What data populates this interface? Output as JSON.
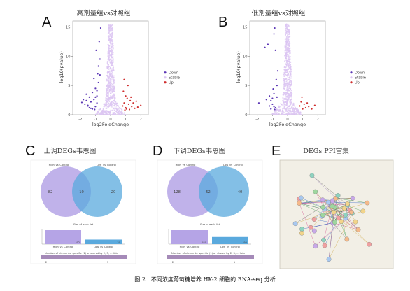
{
  "panels": {
    "A": {
      "letter": "A",
      "title": "高剂量组vs对照组"
    },
    "B": {
      "letter": "B",
      "title": "低剂量组vs对照组"
    },
    "C": {
      "letter": "C",
      "title": "上调DEGs韦恩图"
    },
    "D": {
      "letter": "D",
      "title": "下调DEGs韦恩图"
    },
    "E": {
      "letter": "E",
      "title": "DEGs PPI富集"
    }
  },
  "caption": "图 2　不同浓度葡萄糖培养 HK-2 细胞的 RNA-seq 分析",
  "chart_data": [
    {
      "type": "scatter",
      "panel": "A",
      "title": "高剂量组vs对照组",
      "xlabel": "log2FoldChange",
      "ylabel": "-log10(pvalue)",
      "xlim": [
        -2.5,
        2.5
      ],
      "ylim": [
        0,
        16
      ],
      "xticks": [
        -2,
        -1,
        0,
        1,
        2
      ],
      "yticks": [
        0,
        5,
        10,
        15
      ],
      "legend": [
        "Down",
        "Stable",
        "Up"
      ],
      "legend_position": "right",
      "colors": {
        "Down": "#5b36b5",
        "Stable": "#dcc6f2",
        "Up": "#cf2e2e"
      },
      "series": [
        {
          "name": "Down",
          "x": [
            -1.9,
            -1.7,
            -1.6,
            -1.5,
            -1.4,
            -1.3,
            -1.2,
            -1.1,
            -1.0,
            -0.9,
            -0.8,
            -1.4,
            -1.2,
            -1.0,
            -0.9,
            -0.85,
            -0.7,
            -1.6,
            -1.1,
            -0.95,
            -0.8,
            -1.3,
            -1.0,
            -0.75,
            -1.8,
            -1.5,
            -1.05,
            -0.9,
            -0.7,
            -0.65
          ],
          "y": [
            2.1,
            1.8,
            2.4,
            1.5,
            3.0,
            2.2,
            3.8,
            2.6,
            4.5,
            3.2,
            5.5,
            1.2,
            1.0,
            1.4,
            2.0,
            7.0,
            9.5,
            3.5,
            6.2,
            11.0,
            8.3,
            1.1,
            3.0,
            12.5,
            2.6,
            1.6,
            0.9,
            4.1,
            6.8,
            14.8
          ]
        },
        {
          "name": "Up",
          "x": [
            0.8,
            0.9,
            1.0,
            1.1,
            1.2,
            1.3,
            1.4,
            1.5,
            1.6,
            1.8,
            0.85,
            1.0,
            1.15,
            1.25,
            1.7,
            0.9,
            1.05,
            1.35,
            2.0,
            0.95
          ],
          "y": [
            1.5,
            2.0,
            1.2,
            2.8,
            1.8,
            2.4,
            1.4,
            2.0,
            1.1,
            1.3,
            4.0,
            3.2,
            5.0,
            0.9,
            2.3,
            6.0,
            1.0,
            3.0,
            1.6,
            0.8
          ]
        }
      ]
    },
    {
      "type": "scatter",
      "panel": "B",
      "title": "低剂量组vs对照组",
      "xlabel": "log2FoldChange",
      "ylabel": "-log10(pvalue)",
      "xlim": [
        -2.5,
        2.5
      ],
      "ylim": [
        0,
        16
      ],
      "xticks": [
        -2,
        -1,
        0,
        1,
        2
      ],
      "yticks": [
        0,
        5,
        10,
        15
      ],
      "legend": [
        "Down",
        "Stable",
        "Up"
      ],
      "legend_position": "right",
      "colors": {
        "Down": "#5b36b5",
        "Stable": "#dcc6f2",
        "Up": "#cf2e2e"
      },
      "series": [
        {
          "name": "Down",
          "x": [
            -1.9,
            -1.5,
            -1.3,
            -1.2,
            -1.1,
            -1.0,
            -0.9,
            -0.85,
            -0.8,
            -0.75,
            -0.7,
            -1.0,
            -0.9,
            -0.8,
            -1.4,
            -0.95,
            -0.85,
            -0.7,
            -1.1,
            -0.65,
            -1.2,
            -0.9
          ],
          "y": [
            2.0,
            11.5,
            12.0,
            1.5,
            2.4,
            1.8,
            13.8,
            14.8,
            11.0,
            6.0,
            5.0,
            2.8,
            3.6,
            1.2,
            2.6,
            4.4,
            0.9,
            3.0,
            1.0,
            7.5,
            3.2,
            1.4
          ]
        },
        {
          "name": "Up",
          "x": [
            0.8,
            0.9,
            1.0,
            1.1,
            1.2,
            1.4,
            1.6,
            1.8,
            0.95,
            1.3
          ],
          "y": [
            1.5,
            2.2,
            1.0,
            1.8,
            1.2,
            1.4,
            1.0,
            1.6,
            3.0,
            2.0
          ]
        }
      ]
    },
    {
      "type": "venn",
      "panel": "C",
      "title": "上调DEGs韦恩图",
      "sets": [
        "High_vs_Control",
        "Low_vs_Control"
      ],
      "only_first": 82,
      "intersection": 10,
      "only_second": 20,
      "bar_title": "Size of each list",
      "bars": [
        {
          "name": "High_vs_Control",
          "value": 92
        },
        {
          "name": "Low_vs_Control",
          "value": 30
        }
      ],
      "footer_label": "Number of elements: specific (1) or shared by 2, 3, ... lists",
      "footer_ticks": [
        "2",
        "1"
      ]
    },
    {
      "type": "venn",
      "panel": "D",
      "title": "下调DEGs韦恩图",
      "sets": [
        "High_vs_Control",
        "Low_vs_Control"
      ],
      "only_first": 128,
      "intersection": 52,
      "only_second": 40,
      "bar_title": "Size of each list",
      "bars": [
        {
          "name": "High_vs_Control",
          "value": 180
        },
        {
          "name": "Low_vs_Control",
          "value": 92
        }
      ],
      "footer_label": "Number of elements: specific (1) or shared by 2, 3, ... lists",
      "footer_ticks": [
        "2",
        "1"
      ]
    }
  ]
}
